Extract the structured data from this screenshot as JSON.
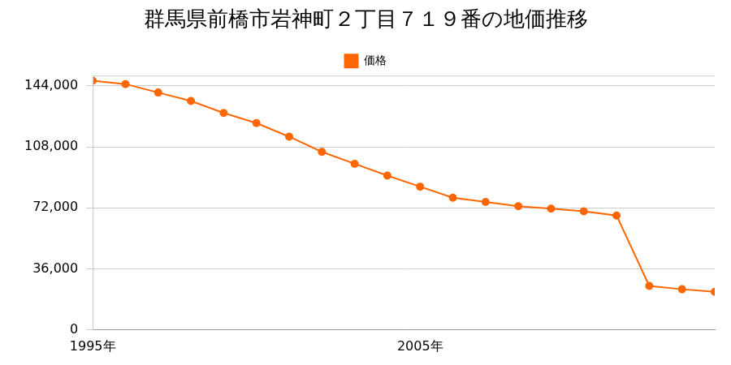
{
  "chart_data": {
    "type": "line",
    "title": "群馬県前橋市岩神町２丁目７１９番の地価推移",
    "categories": [
      "1995年",
      null,
      null,
      null,
      null,
      null,
      null,
      null,
      null,
      null,
      "2005年",
      null,
      null,
      null,
      null,
      null,
      null,
      null,
      null,
      null
    ],
    "series": [
      {
        "name": "価格",
        "color": "#ff6600",
        "marker": "circle",
        "line_style": "solid",
        "values": [
          147000,
          145000,
          140000,
          135000,
          128000,
          122000,
          114000,
          105000,
          98000,
          91000,
          84500,
          78000,
          75500,
          73000,
          71500,
          70000,
          67500,
          26000,
          24000,
          22500
        ]
      }
    ],
    "ylim": [
      0,
      150000
    ],
    "yticks": [
      0,
      {
        "value": 36000,
        "label": "36,000"
      },
      {
        "value": 72000,
        "label": "72,000"
      },
      {
        "value": 108000,
        "label": "108,000"
      },
      {
        "value": 144000,
        "label": "144,000"
      }
    ],
    "grid": true,
    "legend": "top"
  }
}
